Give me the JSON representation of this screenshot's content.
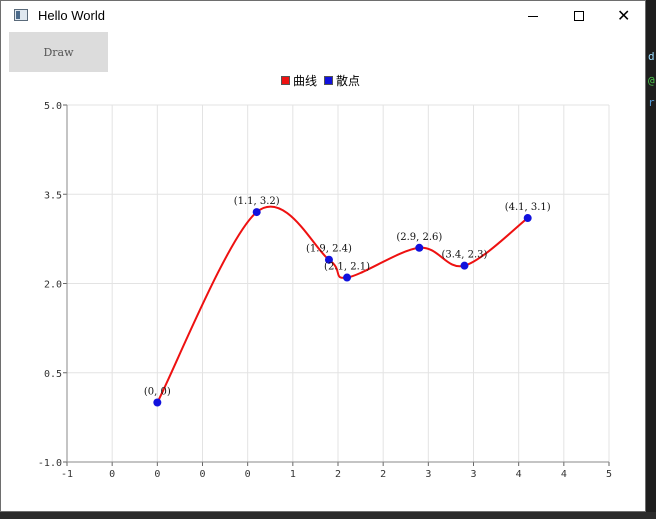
{
  "window": {
    "title": "Hello World",
    "minimize_icon": "minimize-icon",
    "maximize_icon": "maximize-icon",
    "close_icon": "close-icon",
    "close_glyph": "✕"
  },
  "toolbar": {
    "draw_label": "Draw"
  },
  "legend": [
    {
      "label": "曲线",
      "color": "#ee1111"
    },
    {
      "label": "散点",
      "color": "#1111dd"
    }
  ],
  "chart_data": {
    "type": "line",
    "legend_position": "top-center",
    "grid": true,
    "xlim": [
      -1,
      5
    ],
    "ylim": [
      -1.0,
      5.0
    ],
    "x_tick_labels": [
      "-1",
      "0",
      "0",
      "0",
      "0",
      "1",
      "2",
      "2",
      "3",
      "3",
      "4",
      "4",
      "5"
    ],
    "y_tick_labels": [
      "-1.0",
      "0.5",
      "2.0",
      "3.5",
      "5.0"
    ],
    "series": [
      {
        "name": "曲线",
        "type": "spline",
        "color": "#ee1111",
        "x": [
          0,
          1.1,
          1.9,
          2.1,
          2.9,
          3.4,
          4.1
        ],
        "y": [
          0,
          3.2,
          2.4,
          2.1,
          2.6,
          2.3,
          3.1
        ]
      },
      {
        "name": "散点",
        "type": "scatter",
        "color": "#1111dd",
        "x": [
          0,
          1.1,
          1.9,
          2.1,
          2.9,
          3.4,
          4.1
        ],
        "y": [
          0,
          3.2,
          2.4,
          2.1,
          2.6,
          2.3,
          3.1
        ],
        "labels": [
          "(0, 0)",
          "(1.1, 3.2)",
          "(1.9, 2.4)",
          "(2.1, 2.1)",
          "(2.9, 2.6)",
          "(3.4, 2.3)",
          "(4.1, 3.1)"
        ]
      }
    ]
  }
}
